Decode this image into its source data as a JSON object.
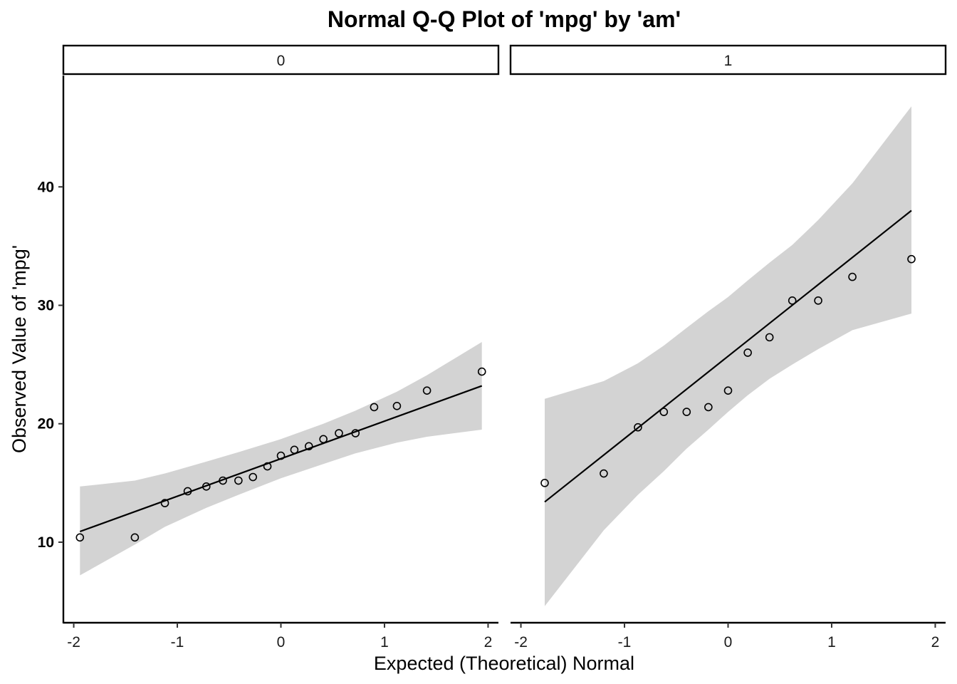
{
  "chart_data": {
    "type": "scatter",
    "title": "Normal Q-Q Plot of 'mpg' by 'am'",
    "xlabel": "Expected (Theoretical) Normal",
    "ylabel": "Observed Value of 'mpg'",
    "xlim": [
      -2.1,
      2.1
    ],
    "ylim": [
      3.2,
      49.4
    ],
    "xticks": [
      -2,
      -1,
      0,
      1,
      2
    ],
    "xtick_labels": [
      "-2",
      "-1",
      "0",
      "1",
      "2"
    ],
    "yticks": [
      10,
      20,
      30,
      40
    ],
    "ytick_labels": [
      "10",
      "20",
      "30",
      "40"
    ],
    "grid": false,
    "panels": [
      {
        "strip_label": "0",
        "points": {
          "x": [
            -1.94,
            -1.41,
            -1.12,
            -0.9,
            -0.72,
            -0.56,
            -0.41,
            -0.27,
            -0.13,
            0.0,
            0.13,
            0.27,
            0.41,
            0.56,
            0.72,
            0.9,
            1.12,
            1.41,
            1.94
          ],
          "y": [
            10.4,
            10.4,
            13.3,
            14.3,
            14.7,
            15.2,
            15.2,
            15.5,
            16.4,
            17.3,
            17.8,
            18.1,
            18.7,
            19.2,
            19.2,
            21.4,
            21.5,
            22.8,
            24.4
          ]
        },
        "line": {
          "x": [
            -1.94,
            1.94
          ],
          "y": [
            10.9,
            23.2
          ]
        },
        "band": {
          "x": [
            -1.94,
            -1.41,
            -1.12,
            -0.72,
            -0.41,
            0.0,
            0.41,
            0.72,
            1.12,
            1.41,
            1.94
          ],
          "lower": [
            7.2,
            9.8,
            11.3,
            12.9,
            14.0,
            15.4,
            16.6,
            17.5,
            18.4,
            18.9,
            19.5
          ],
          "upper": [
            14.7,
            15.2,
            15.8,
            16.8,
            17.6,
            18.7,
            20.0,
            21.1,
            22.7,
            24.1,
            26.9
          ]
        }
      },
      {
        "strip_label": "1",
        "points": {
          "x": [
            -1.77,
            -1.2,
            -0.87,
            -0.62,
            -0.4,
            -0.19,
            0.0,
            0.19,
            0.4,
            0.62,
            0.87,
            1.2,
            1.77
          ],
          "y": [
            15.0,
            15.8,
            19.7,
            21.0,
            21.0,
            21.4,
            22.8,
            26.0,
            27.3,
            30.4,
            30.4,
            32.4,
            33.9
          ]
        },
        "line": {
          "x": [
            -1.77,
            1.77
          ],
          "y": [
            13.4,
            38.0
          ]
        },
        "band": {
          "x": [
            -1.77,
            -1.2,
            -0.87,
            -0.62,
            -0.4,
            -0.19,
            0.0,
            0.19,
            0.4,
            0.62,
            0.87,
            1.2,
            1.77
          ],
          "lower": [
            4.6,
            11.0,
            14.0,
            16.0,
            17.9,
            19.5,
            21.0,
            22.4,
            23.8,
            25.0,
            26.3,
            27.9,
            29.3
          ],
          "upper": [
            22.1,
            23.6,
            25.1,
            26.6,
            28.1,
            29.5,
            30.7,
            32.1,
            33.6,
            35.1,
            37.2,
            40.3,
            46.8
          ]
        }
      }
    ]
  }
}
